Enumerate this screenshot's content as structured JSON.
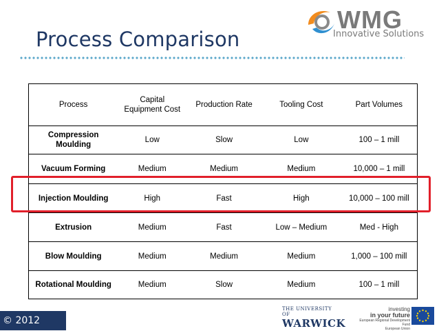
{
  "title": "Process Comparison",
  "logo": {
    "name": "WMG",
    "tagline": "Innovative Solutions"
  },
  "table": {
    "headers": [
      "Process",
      "Capital Equipment Cost",
      "Production Rate",
      "Tooling Cost",
      "Part Volumes"
    ],
    "rows": [
      [
        "Compression Moulding",
        "Low",
        "Slow",
        "Low",
        "100 – 1 mill"
      ],
      [
        "Vacuum Forming",
        "Medium",
        "Medium",
        "Medium",
        "10,000 – 1 mill"
      ],
      [
        "Injection Moulding",
        "High",
        "Fast",
        "High",
        "10,000 – 100 mill"
      ],
      [
        "Extrusion",
        "Medium",
        "Fast",
        "Low – Medium",
        "Med - High"
      ],
      [
        "Blow Moulding",
        "Medium",
        "Medium",
        "Medium",
        "1,000 – 100 mill"
      ],
      [
        "Rotational Moulding",
        "Medium",
        "Slow",
        "Medium",
        "100 – 1 mill"
      ]
    ]
  },
  "footer": {
    "copyright": "© 2012",
    "university_top": "THE UNIVERSITY OF",
    "university_name": "WARWICK",
    "investing_1": "investing",
    "investing_2": "in your future",
    "investing_3": "European Regional Development Fund",
    "investing_4": "European Union"
  },
  "colors": {
    "title": "#1f3864",
    "highlight": "#e11f2a",
    "footer_bar": "#1f3864",
    "dots": "#5aa7c9"
  }
}
